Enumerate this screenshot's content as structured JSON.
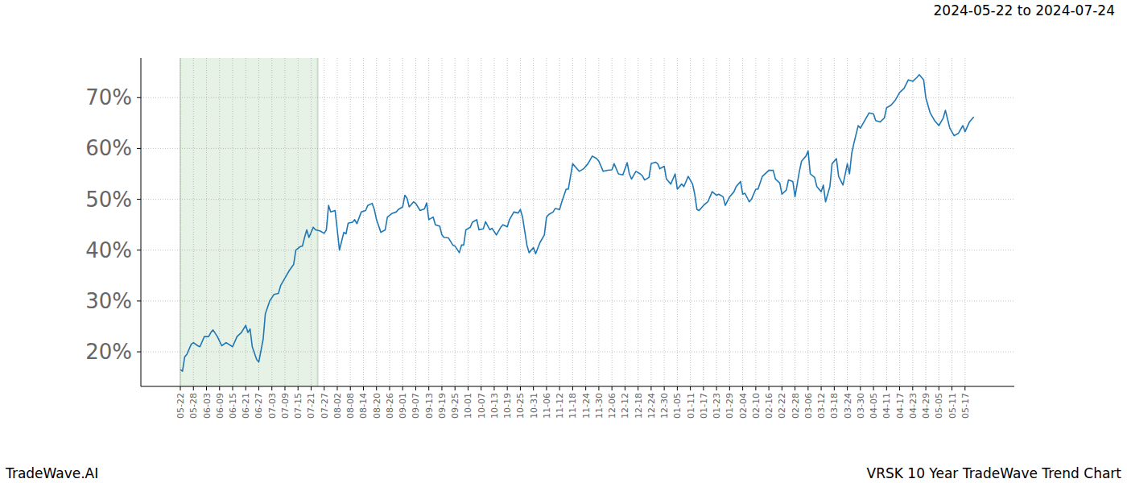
{
  "chart_data": {
    "type": "line",
    "title": "2024-05-22 to 2024-07-24",
    "footer_left": "TradeWave.AI",
    "footer_right": "VRSK 10 Year TradeWave Trend Chart",
    "color": "#1f77b4",
    "grid": true,
    "shaded_range": [
      0,
      63
    ],
    "xlim": [
      -18.1,
      382.6
    ],
    "ylim": [
      13.2,
      77.8
    ],
    "yticks": [
      {
        "value": 20,
        "label": "20%"
      },
      {
        "value": 30,
        "label": "30%"
      },
      {
        "value": 40,
        "label": "40%"
      },
      {
        "value": 50,
        "label": "50%"
      },
      {
        "value": 60,
        "label": "60%"
      },
      {
        "value": 70,
        "label": "70%"
      }
    ],
    "xticks": [
      {
        "value": 0,
        "label": "05-22"
      },
      {
        "value": 6,
        "label": "05-28"
      },
      {
        "value": 12,
        "label": "06-03"
      },
      {
        "value": 18,
        "label": "06-09"
      },
      {
        "value": 24,
        "label": "06-15"
      },
      {
        "value": 30,
        "label": "06-21"
      },
      {
        "value": 36,
        "label": "06-27"
      },
      {
        "value": 42,
        "label": "07-03"
      },
      {
        "value": 48,
        "label": "07-09"
      },
      {
        "value": 54,
        "label": "07-15"
      },
      {
        "value": 60,
        "label": "07-21"
      },
      {
        "value": 66,
        "label": "07-27"
      },
      {
        "value": 72,
        "label": "08-02"
      },
      {
        "value": 78,
        "label": "08-08"
      },
      {
        "value": 84,
        "label": "08-14"
      },
      {
        "value": 90,
        "label": "08-20"
      },
      {
        "value": 96,
        "label": "08-26"
      },
      {
        "value": 102,
        "label": "09-01"
      },
      {
        "value": 108,
        "label": "09-07"
      },
      {
        "value": 114,
        "label": "09-13"
      },
      {
        "value": 120,
        "label": "09-19"
      },
      {
        "value": 126,
        "label": "09-25"
      },
      {
        "value": 132,
        "label": "10-01"
      },
      {
        "value": 138,
        "label": "10-07"
      },
      {
        "value": 144,
        "label": "10-13"
      },
      {
        "value": 150,
        "label": "10-19"
      },
      {
        "value": 156,
        "label": "10-25"
      },
      {
        "value": 162,
        "label": "10-31"
      },
      {
        "value": 168,
        "label": "11-06"
      },
      {
        "value": 174,
        "label": "11-12"
      },
      {
        "value": 180,
        "label": "11-18"
      },
      {
        "value": 186,
        "label": "11-24"
      },
      {
        "value": 192,
        "label": "11-30"
      },
      {
        "value": 198,
        "label": "12-06"
      },
      {
        "value": 204,
        "label": "12-12"
      },
      {
        "value": 210,
        "label": "12-18"
      },
      {
        "value": 216,
        "label": "12-24"
      },
      {
        "value": 222,
        "label": "12-30"
      },
      {
        "value": 228,
        "label": "01-05"
      },
      {
        "value": 234,
        "label": "01-11"
      },
      {
        "value": 240,
        "label": "01-17"
      },
      {
        "value": 246,
        "label": "01-23"
      },
      {
        "value": 252,
        "label": "01-29"
      },
      {
        "value": 258,
        "label": "02-04"
      },
      {
        "value": 264,
        "label": "02-10"
      },
      {
        "value": 270,
        "label": "02-16"
      },
      {
        "value": 276,
        "label": "02-22"
      },
      {
        "value": 282,
        "label": "02-28"
      },
      {
        "value": 288,
        "label": "03-06"
      },
      {
        "value": 294,
        "label": "03-12"
      },
      {
        "value": 300,
        "label": "03-18"
      },
      {
        "value": 306,
        "label": "03-24"
      },
      {
        "value": 312,
        "label": "03-30"
      },
      {
        "value": 318,
        "label": "04-05"
      },
      {
        "value": 324,
        "label": "04-11"
      },
      {
        "value": 330,
        "label": "04-17"
      },
      {
        "value": 336,
        "label": "04-23"
      },
      {
        "value": 342,
        "label": "04-29"
      },
      {
        "value": 348,
        "label": "05-05"
      },
      {
        "value": 354,
        "label": "05-11"
      },
      {
        "value": 360,
        "label": "05-17"
      }
    ],
    "x": [
      0,
      1,
      2,
      3,
      5,
      6,
      8,
      9,
      11,
      13,
      14,
      15,
      17,
      19,
      21,
      24,
      26,
      28,
      30,
      31,
      32,
      33,
      35,
      36,
      38,
      39,
      41,
      43,
      45,
      46,
      48,
      50,
      52,
      53,
      55,
      56,
      57,
      58,
      59,
      61,
      62,
      64,
      66,
      67,
      68,
      69,
      71,
      72,
      73,
      75,
      76,
      77,
      79,
      80,
      81,
      83,
      85,
      86,
      88,
      89,
      90,
      92,
      94,
      95,
      97,
      99,
      100,
      102,
      103,
      104,
      105,
      107,
      108,
      110,
      112,
      113,
      114,
      116,
      117,
      119,
      120,
      121,
      123,
      125,
      126,
      128,
      129,
      130,
      131,
      133,
      134,
      136,
      137,
      139,
      140,
      142,
      143,
      145,
      147,
      148,
      150,
      151,
      153,
      155,
      156,
      157,
      159,
      160,
      162,
      163,
      165,
      167,
      168,
      169,
      171,
      172,
      174,
      175,
      177,
      178,
      180,
      182,
      183,
      185,
      187,
      189,
      191,
      192,
      194,
      196,
      198,
      199,
      201,
      203,
      205,
      206,
      207,
      209,
      211,
      212,
      213,
      215,
      216,
      218,
      219,
      220,
      222,
      223,
      225,
      227,
      228,
      230,
      231,
      233,
      235,
      236,
      237,
      238,
      240,
      242,
      244,
      246,
      247,
      249,
      250,
      252,
      254,
      255,
      257,
      258,
      259,
      261,
      262,
      264,
      265,
      267,
      269,
      270,
      272,
      273,
      275,
      276,
      278,
      279,
      281,
      282,
      284,
      285,
      287,
      288,
      289,
      291,
      292,
      294,
      295,
      296,
      298,
      299,
      301,
      302,
      304,
      306,
      307,
      308,
      309,
      311,
      312,
      314,
      316,
      318,
      319,
      321,
      323,
      324,
      326,
      328,
      330,
      332,
      334,
      336,
      338,
      339,
      341,
      342,
      344,
      346,
      348,
      350,
      351,
      353,
      355,
      357,
      359,
      360,
      362,
      364
    ],
    "values": [
      16.5,
      16.2,
      19,
      19.5,
      21.5,
      21.8,
      21.2,
      21,
      23,
      23,
      23.8,
      24.3,
      23,
      21.2,
      21.8,
      21,
      23,
      23.8,
      25.2,
      23.8,
      24.5,
      21,
      18.5,
      18,
      22.5,
      27.5,
      30,
      31.3,
      31.5,
      33,
      34.5,
      36,
      37.2,
      40,
      40.7,
      40.8,
      42.5,
      44,
      42.5,
      44.5,
      44,
      43.8,
      43.3,
      44,
      48.8,
      47.5,
      47.8,
      44,
      40,
      43.5,
      43.2,
      45.3,
      45.5,
      46,
      45.2,
      47.5,
      47.8,
      48.8,
      49.2,
      48,
      46,
      43.5,
      44,
      46.5,
      47.2,
      47.5,
      48,
      48.5,
      50.8,
      50.2,
      48.5,
      49.5,
      49.2,
      47.8,
      48.1,
      49.3,
      46,
      46.5,
      45,
      44.7,
      43,
      42.5,
      42.4,
      41,
      40.8,
      39.5,
      41,
      41,
      44,
      44.5,
      45.5,
      46,
      44,
      44.2,
      45.6,
      44,
      44.3,
      43,
      44.5,
      45,
      44.6,
      46,
      47.5,
      47.3,
      48,
      46.5,
      41,
      39.5,
      40.5,
      39.3,
      41.5,
      43,
      46.5,
      47,
      47.5,
      48.2,
      48,
      49.5,
      52,
      52,
      57,
      56,
      55.5,
      56,
      57,
      58.5,
      58,
      57.5,
      55.5,
      55.7,
      55.8,
      57,
      55,
      54.8,
      57.2,
      55,
      54,
      55.5,
      55,
      54.6,
      53.8,
      54.3,
      57,
      57.3,
      57,
      56,
      56.5,
      54,
      53,
      55,
      52,
      53,
      52.5,
      54.5,
      53,
      51,
      48,
      47.8,
      48.8,
      49.5,
      51.5,
      50.8,
      51,
      50.5,
      48.8,
      50.5,
      51.5,
      52.5,
      53.5,
      51,
      51.2,
      49.5,
      50,
      52,
      52,
      54.5,
      55.3,
      55.7,
      55.7,
      54,
      53.2,
      51,
      51.8,
      53.8,
      53.5,
      50.5,
      55.5,
      57.5,
      58.5,
      59.5,
      55,
      54.3,
      52.5,
      51.5,
      52.8,
      49.5,
      52.5,
      57,
      58,
      54.5,
      52.8,
      57,
      55,
      59,
      61,
      64.5,
      64,
      65.5,
      67,
      66.8,
      65.5,
      65.2,
      66,
      68,
      68.5,
      69.5,
      71,
      71.8,
      73.5,
      73.2,
      74,
      74.5,
      73.5,
      70,
      67,
      65.5,
      64.5,
      66,
      67.5,
      64,
      62.5,
      63,
      64.5,
      63.3,
      65.2,
      66.2
    ]
  }
}
